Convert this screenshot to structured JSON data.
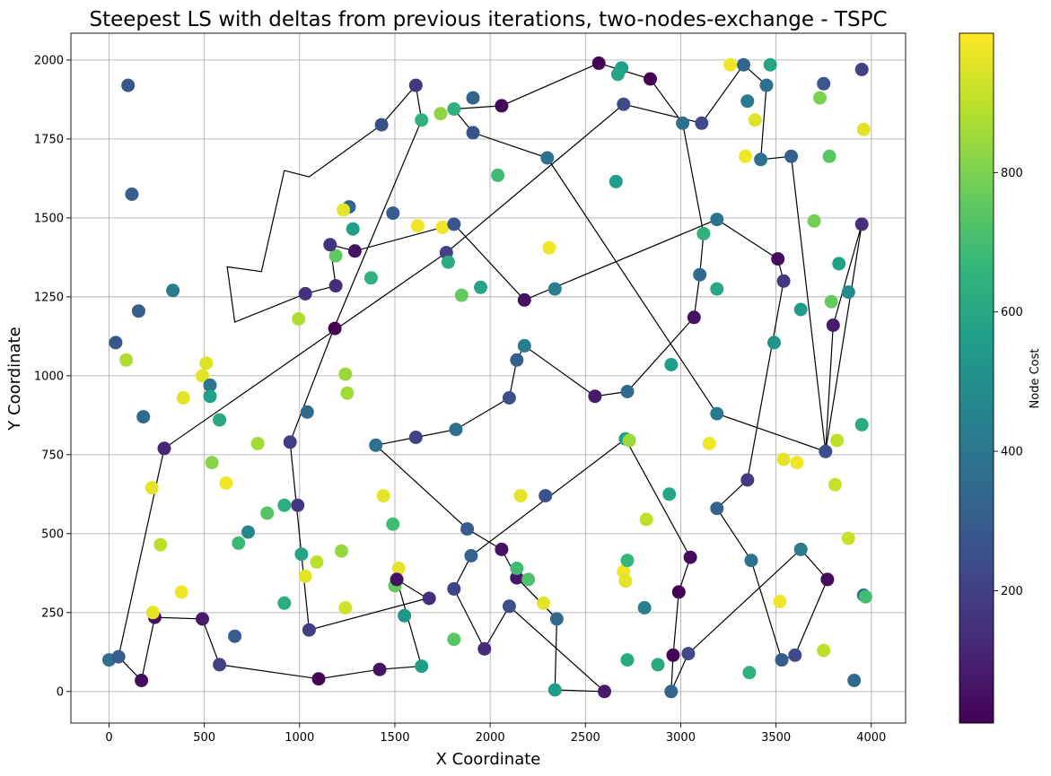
{
  "chart_data": {
    "type": "scatter",
    "title": "Steepest LS with deltas from previous iterations, two-nodes-exchange - TSPC",
    "xlabel": "X Coordinate",
    "ylabel": "Y Coordinate",
    "xlim": [
      -200,
      4180
    ],
    "ylim": [
      -100,
      2085
    ],
    "xticks": [
      0,
      500,
      1000,
      1500,
      2000,
      2500,
      3000,
      3500,
      4000
    ],
    "yticks": [
      0,
      250,
      500,
      750,
      1000,
      1250,
      1500,
      1750,
      2000
    ],
    "grid": true,
    "colorbar": {
      "label": "Node Cost",
      "colormap": "viridis",
      "range": [
        10,
        1000
      ],
      "ticks": [
        200,
        400,
        600,
        800
      ],
      "stops": [
        "#440154",
        "#482878",
        "#3e4a89",
        "#31688e",
        "#26828e",
        "#1f9e89",
        "#35b779",
        "#6ece58",
        "#b5de2b",
        "#fde725"
      ]
    },
    "points": [
      [
        0,
        100,
        380
      ],
      [
        50,
        110,
        300
      ],
      [
        170,
        35,
        40
      ],
      [
        240,
        235,
        50
      ],
      [
        490,
        230,
        80
      ],
      [
        580,
        85,
        200
      ],
      [
        1100,
        40,
        20
      ],
      [
        1420,
        70,
        60
      ],
      [
        1640,
        80,
        560
      ],
      [
        230,
        250,
        960
      ],
      [
        270,
        465,
        900
      ],
      [
        380,
        315,
        980
      ],
      [
        225,
        645,
        960
      ],
      [
        290,
        770,
        110
      ],
      [
        180,
        870,
        350
      ],
      [
        90,
        1050,
        880
      ],
      [
        35,
        1105,
        280
      ],
      [
        155,
        1205,
        300
      ],
      [
        120,
        1575,
        300
      ],
      [
        100,
        1920,
        280
      ],
      [
        335,
        1270,
        420
      ],
      [
        490,
        1000,
        960
      ],
      [
        510,
        1040,
        950
      ],
      [
        390,
        930,
        960
      ],
      [
        530,
        970,
        400
      ],
      [
        530,
        935,
        570
      ],
      [
        580,
        860,
        610
      ],
      [
        540,
        725,
        820
      ],
      [
        615,
        660,
        980
      ],
      [
        660,
        175,
        300
      ],
      [
        680,
        470,
        680
      ],
      [
        730,
        505,
        470
      ],
      [
        780,
        785,
        860
      ],
      [
        830,
        565,
        730
      ],
      [
        920,
        590,
        630
      ],
      [
        920,
        280,
        630
      ],
      [
        990,
        590,
        170
      ],
      [
        1010,
        435,
        590
      ],
      [
        1030,
        365,
        960
      ],
      [
        1090,
        410,
        900
      ],
      [
        1050,
        195,
        190
      ],
      [
        950,
        790,
        190
      ],
      [
        1040,
        885,
        350
      ],
      [
        995,
        1180,
        880
      ],
      [
        1030,
        1260,
        150
      ],
      [
        1185,
        1150,
        10
      ],
      [
        1190,
        1285,
        140
      ],
      [
        1190,
        1380,
        750
      ],
      [
        1160,
        1415,
        160
      ],
      [
        1290,
        1395,
        60
      ],
      [
        1280,
        1465,
        570
      ],
      [
        1260,
        1535,
        330
      ],
      [
        1230,
        1525,
        960
      ],
      [
        1240,
        1005,
        850
      ],
      [
        1250,
        945,
        860
      ],
      [
        1220,
        445,
        840
      ],
      [
        1240,
        265,
        930
      ],
      [
        1375,
        1310,
        640
      ],
      [
        1490,
        1515,
        300
      ],
      [
        1440,
        620,
        960
      ],
      [
        1490,
        530,
        690
      ],
      [
        1500,
        335,
        760
      ],
      [
        1520,
        390,
        960
      ],
      [
        1510,
        355,
        60
      ],
      [
        1550,
        240,
        530
      ],
      [
        1610,
        805,
        200
      ],
      [
        1400,
        780,
        380
      ],
      [
        1430,
        1795,
        260
      ],
      [
        1610,
        1920,
        170
      ],
      [
        1640,
        1810,
        640
      ],
      [
        1620,
        1475,
        980
      ],
      [
        1750,
        1470,
        980
      ],
      [
        1740,
        1830,
        830
      ],
      [
        1810,
        1845,
        640
      ],
      [
        1810,
        1480,
        270
      ],
      [
        1770,
        1390,
        200
      ],
      [
        1780,
        1360,
        620
      ],
      [
        1910,
        1880,
        330
      ],
      [
        1910,
        1770,
        260
      ],
      [
        2040,
        1635,
        690
      ],
      [
        1850,
        1255,
        760
      ],
      [
        1950,
        1280,
        590
      ],
      [
        2180,
        1240,
        60
      ],
      [
        2060,
        1855,
        20
      ],
      [
        1820,
        830,
        380
      ],
      [
        1880,
        515,
        300
      ],
      [
        1900,
        430,
        320
      ],
      [
        1810,
        325,
        220
      ],
      [
        1680,
        295,
        140
      ],
      [
        1810,
        165,
        740
      ],
      [
        1970,
        135,
        130
      ],
      [
        2060,
        450,
        60
      ],
      [
        2140,
        360,
        70
      ],
      [
        2140,
        390,
        690
      ],
      [
        2200,
        355,
        720
      ],
      [
        2100,
        270,
        250
      ],
      [
        2100,
        930,
        250
      ],
      [
        2140,
        1050,
        310
      ],
      [
        2180,
        1095,
        420
      ],
      [
        2160,
        620,
        960
      ],
      [
        2290,
        620,
        260
      ],
      [
        2280,
        280,
        960
      ],
      [
        2350,
        230,
        350
      ],
      [
        2340,
        5,
        550
      ],
      [
        2310,
        1405,
        980
      ],
      [
        2340,
        1275,
        430
      ],
      [
        2300,
        1690,
        380
      ],
      [
        2600,
        0,
        80
      ],
      [
        2550,
        935,
        80
      ],
      [
        2570,
        1990,
        20
      ],
      [
        2690,
        1975,
        570
      ],
      [
        2670,
        1955,
        590
      ],
      [
        2660,
        1615,
        560
      ],
      [
        2700,
        1860,
        230
      ],
      [
        2840,
        1940,
        20
      ],
      [
        2700,
        380,
        980
      ],
      [
        2710,
        350,
        960
      ],
      [
        2720,
        415,
        670
      ],
      [
        2720,
        100,
        620
      ],
      [
        2710,
        800,
        570
      ],
      [
        2730,
        795,
        850
      ],
      [
        2720,
        950,
        340
      ],
      [
        2810,
        265,
        440
      ],
      [
        2820,
        545,
        900
      ],
      [
        2880,
        85,
        610
      ],
      [
        2940,
        625,
        590
      ],
      [
        2950,
        1035,
        560
      ],
      [
        3010,
        1800,
        370
      ],
      [
        3110,
        1800,
        230
      ],
      [
        3260,
        1985,
        980
      ],
      [
        3330,
        1985,
        330
      ],
      [
        3470,
        1985,
        590
      ],
      [
        3450,
        1920,
        380
      ],
      [
        3350,
        1870,
        420
      ],
      [
        3390,
        1810,
        950
      ],
      [
        3340,
        1695,
        980
      ],
      [
        3420,
        1685,
        380
      ],
      [
        3580,
        1695,
        310
      ],
      [
        3750,
        1925,
        280
      ],
      [
        3730,
        1880,
        800
      ],
      [
        3950,
        1970,
        200
      ],
      [
        3960,
        1780,
        960
      ],
      [
        3780,
        1695,
        740
      ],
      [
        3700,
        1490,
        790
      ],
      [
        3950,
        1480,
        140
      ],
      [
        3830,
        1355,
        570
      ],
      [
        3880,
        1265,
        480
      ],
      [
        3790,
        1235,
        760
      ],
      [
        3800,
        1160,
        80
      ],
      [
        3630,
        1210,
        550
      ],
      [
        3540,
        1300,
        170
      ],
      [
        3510,
        1370,
        40
      ],
      [
        3490,
        1105,
        520
      ],
      [
        3070,
        1185,
        60
      ],
      [
        3100,
        1320,
        350
      ],
      [
        3120,
        1450,
        640
      ],
      [
        3190,
        1495,
        390
      ],
      [
        3190,
        1275,
        600
      ],
      [
        3190,
        880,
        410
      ],
      [
        3150,
        785,
        980
      ],
      [
        3540,
        735,
        960
      ],
      [
        3610,
        725,
        980
      ],
      [
        3760,
        760,
        250
      ],
      [
        3820,
        795,
        900
      ],
      [
        3810,
        655,
        920
      ],
      [
        3950,
        845,
        620
      ],
      [
        3880,
        485,
        920
      ],
      [
        3960,
        305,
        370
      ],
      [
        3970,
        300,
        700
      ],
      [
        3770,
        355,
        40
      ],
      [
        3630,
        450,
        420
      ],
      [
        3600,
        115,
        230
      ],
      [
        3530,
        100,
        300
      ],
      [
        3520,
        285,
        980
      ],
      [
        3360,
        60,
        640
      ],
      [
        3370,
        415,
        380
      ],
      [
        3190,
        580,
        320
      ],
      [
        3350,
        670,
        180
      ],
      [
        3050,
        425,
        40
      ],
      [
        2990,
        315,
        10
      ],
      [
        3040,
        120,
        230
      ],
      [
        2960,
        115,
        20
      ],
      [
        2950,
        0,
        330
      ],
      [
        3750,
        130,
        900
      ],
      [
        3910,
        35,
        340
      ]
    ],
    "tour": [
      [
        2060,
        1855
      ],
      [
        2570,
        1990
      ],
      [
        2840,
        1940
      ],
      [
        3010,
        1800
      ],
      [
        3120,
        1450
      ],
      [
        3100,
        1320
      ],
      [
        3070,
        1185
      ],
      [
        2720,
        950
      ],
      [
        2550,
        935
      ],
      [
        2180,
        1095
      ],
      [
        2140,
        1050
      ],
      [
        2100,
        930
      ],
      [
        1820,
        830
      ],
      [
        1610,
        805
      ],
      [
        1400,
        780
      ],
      [
        1880,
        515
      ],
      [
        2060,
        450
      ],
      [
        2140,
        360
      ],
      [
        2350,
        230
      ],
      [
        2340,
        5
      ],
      [
        2600,
        0
      ],
      [
        2100,
        270
      ],
      [
        1970,
        135
      ],
      [
        1810,
        325
      ],
      [
        1900,
        430
      ],
      [
        2710,
        800
      ],
      [
        3050,
        425
      ],
      [
        2990,
        315
      ],
      [
        2960,
        115
      ],
      [
        2950,
        0
      ],
      [
        3040,
        120
      ],
      [
        3630,
        450
      ],
      [
        3770,
        355
      ],
      [
        3600,
        115
      ],
      [
        3530,
        100
      ],
      [
        3370,
        415
      ],
      [
        3190,
        580
      ],
      [
        3350,
        670
      ],
      [
        3540,
        1300
      ],
      [
        3510,
        1370
      ],
      [
        3190,
        1495
      ],
      [
        2180,
        1240
      ],
      [
        1810,
        1480
      ],
      [
        1290,
        1395
      ],
      [
        1160,
        1415
      ],
      [
        1190,
        1285
      ],
      [
        1030,
        1260
      ],
      [
        660,
        1170
      ],
      [
        620,
        1345
      ],
      [
        800,
        1330
      ],
      [
        920,
        1650
      ],
      [
        1050,
        1630
      ],
      [
        1430,
        1795
      ],
      [
        1610,
        1920
      ],
      [
        1640,
        1810
      ],
      [
        1180,
        1150
      ],
      [
        950,
        790
      ],
      [
        1050,
        195
      ],
      [
        1670,
        295
      ],
      [
        1510,
        355
      ],
      [
        1640,
        80
      ],
      [
        1420,
        70
      ],
      [
        1100,
        40
      ],
      [
        580,
        85
      ],
      [
        490,
        230
      ],
      [
        240,
        235
      ],
      [
        170,
        35
      ],
      [
        50,
        110
      ],
      [
        290,
        770
      ],
      [
        1770,
        1390
      ],
      [
        2700,
        1860
      ],
      [
        3110,
        1800
      ],
      [
        3330,
        1985
      ],
      [
        3450,
        1920
      ],
      [
        3420,
        1685
      ],
      [
        3580,
        1695
      ],
      [
        3760,
        760
      ],
      [
        3800,
        1160
      ],
      [
        3950,
        1480
      ],
      [
        3760,
        760
      ],
      [
        3190,
        880
      ],
      [
        2300,
        1690
      ],
      [
        1910,
        1770
      ],
      [
        1810,
        1845
      ],
      [
        2060,
        1855
      ]
    ]
  }
}
